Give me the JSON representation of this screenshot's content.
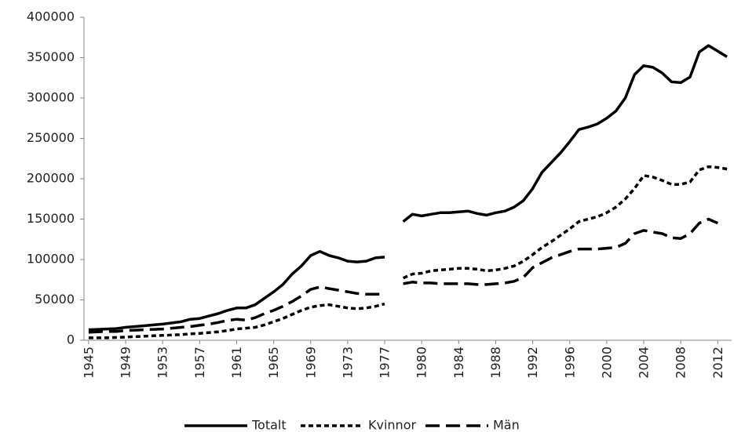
{
  "chart_data": {
    "type": "line",
    "categories": [
      "1945",
      null,
      null,
      null,
      "1949",
      null,
      null,
      null,
      "1953",
      null,
      null,
      null,
      "1957",
      null,
      null,
      null,
      "1961",
      null,
      null,
      null,
      "1965",
      null,
      null,
      null,
      "1969",
      null,
      null,
      null,
      "1973",
      null,
      null,
      null,
      "1977",
      null,
      null,
      null,
      "1980",
      null,
      null,
      null,
      "1984",
      null,
      null,
      null,
      "1988",
      null,
      null,
      null,
      "1992",
      null,
      null,
      null,
      "1996",
      null,
      null,
      null,
      "2000",
      null,
      null,
      null,
      "2004",
      null,
      null,
      null,
      "2008",
      null,
      null,
      null,
      "2012",
      null
    ],
    "series": [
      {
        "name": "Totalt",
        "color": "#000000",
        "style": "solid",
        "values": [
          13000,
          13500,
          14000,
          14500,
          16000,
          17000,
          18000,
          19000,
          20000,
          21500,
          23000,
          26000,
          27000,
          30000,
          33000,
          37000,
          40000,
          40000,
          44000,
          52000,
          60000,
          69000,
          82000,
          92000,
          105000,
          110000,
          105000,
          102000,
          98000,
          97000,
          98000,
          102000,
          103000,
          null,
          147000,
          156000,
          154000,
          156000,
          158000,
          158000,
          159000,
          160000,
          157000,
          155000,
          158000,
          160000,
          165000,
          173000,
          188000,
          208000,
          220000,
          232000,
          246000,
          261000,
          264000,
          268000,
          275000,
          284000,
          300000,
          329000,
          340000,
          338000,
          331000,
          320000,
          319000,
          326000,
          357000,
          365000,
          358000,
          351000
        ]
      },
      {
        "name": "Kvinnor",
        "color": "#000000",
        "style": "dotted",
        "values": [
          3000,
          3000,
          3000,
          3500,
          4000,
          4500,
          5000,
          5500,
          6000,
          6500,
          7000,
          8000,
          8500,
          9500,
          10500,
          12000,
          14000,
          15000,
          16000,
          19000,
          23000,
          27000,
          32000,
          37000,
          41000,
          43000,
          44000,
          42000,
          40000,
          39000,
          40000,
          42000,
          45000,
          null,
          77000,
          82000,
          83000,
          86000,
          87000,
          88000,
          89000,
          89000,
          88000,
          86000,
          87000,
          89000,
          92000,
          98000,
          106000,
          115000,
          122000,
          130000,
          138000,
          147000,
          150000,
          153000,
          158000,
          165000,
          175000,
          188000,
          204000,
          202000,
          198000,
          193000,
          193000,
          196000,
          211000,
          215000,
          214000,
          212000
        ]
      },
      {
        "name": "Män",
        "color": "#000000",
        "style": "dashed",
        "values": [
          10000,
          10500,
          11000,
          11000,
          12000,
          12500,
          13000,
          13500,
          14000,
          15000,
          16000,
          17000,
          18500,
          20000,
          22000,
          24500,
          26000,
          25000,
          28000,
          33000,
          37000,
          42000,
          48000,
          55000,
          63000,
          66000,
          64000,
          62000,
          60000,
          58000,
          57000,
          57000,
          57000,
          null,
          70000,
          72000,
          71000,
          71000,
          70000,
          70000,
          70000,
          70000,
          69000,
          69000,
          70000,
          71000,
          73000,
          78000,
          90000,
          96000,
          102000,
          106000,
          110000,
          113000,
          113000,
          113000,
          114000,
          115000,
          120000,
          132000,
          136000,
          134000,
          132000,
          127000,
          126000,
          132000,
          145000,
          150000,
          145000,
          null
        ]
      }
    ],
    "ylim": [
      0,
      400000
    ],
    "yticks": [
      0,
      50000,
      100000,
      150000,
      200000,
      250000,
      300000,
      350000,
      400000
    ],
    "grid": false,
    "legend": "bottom"
  }
}
